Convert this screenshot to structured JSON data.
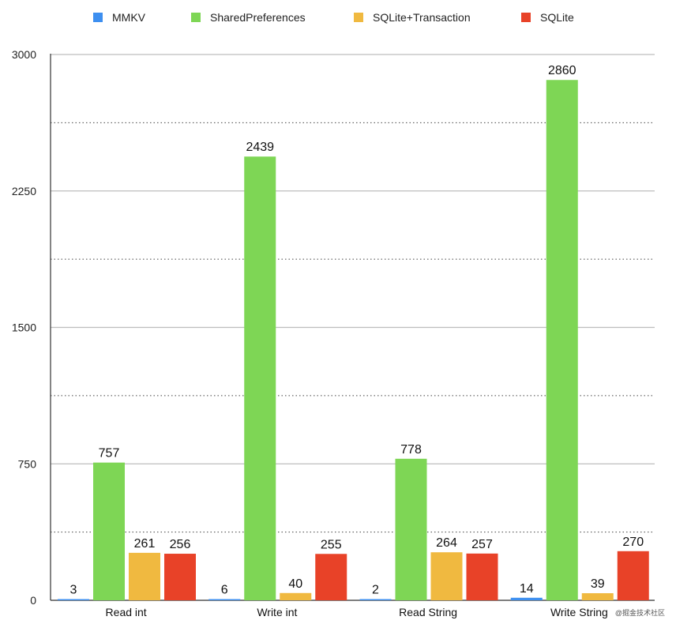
{
  "legend": {
    "items": [
      {
        "label": "MMKV",
        "color": "#3d8ff0"
      },
      {
        "label": "SharedPreferences",
        "color": "#7ed655"
      },
      {
        "label": "SQLite+Transaction",
        "color": "#f0b940"
      },
      {
        "label": "SQLite",
        "color": "#e84228"
      }
    ]
  },
  "watermark": "@掘金技术社区",
  "chart_data": {
    "type": "bar",
    "categories": [
      "Read int",
      "Write int",
      "Read String",
      "Write String"
    ],
    "series": [
      {
        "name": "MMKV",
        "color": "#3d8ff0",
        "values": [
          3,
          6,
          2,
          14
        ]
      },
      {
        "name": "SharedPreferences",
        "color": "#7ed655",
        "values": [
          757,
          2439,
          778,
          2860
        ]
      },
      {
        "name": "SQLite+Transaction",
        "color": "#f0b940",
        "values": [
          261,
          40,
          264,
          39
        ]
      },
      {
        "name": "SQLite",
        "color": "#e84228",
        "values": [
          256,
          255,
          257,
          270
        ]
      }
    ],
    "title": "",
    "xlabel": "",
    "ylabel": "",
    "ylim": [
      0,
      3000
    ],
    "yticks": [
      0,
      750,
      1500,
      2250,
      3000
    ],
    "grid": true,
    "legend_position": "top"
  }
}
